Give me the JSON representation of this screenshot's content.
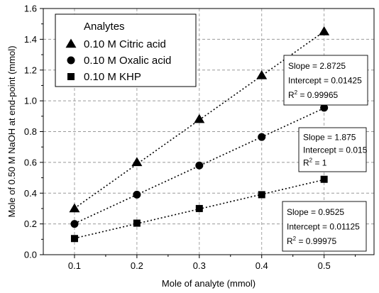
{
  "chart_data": {
    "type": "scatter",
    "title": "",
    "xlabel": "Mole of analyte (mmol)",
    "ylabel": "Mole of 0.50 M NaOH at end-point (mmol)",
    "xlim": [
      0.05,
      0.58
    ],
    "ylim": [
      0.0,
      1.6
    ],
    "x_ticks": [
      0.1,
      0.2,
      0.3,
      0.4,
      0.5
    ],
    "x_tick_labels": [
      "0.1",
      "0.2",
      "0.3",
      "0.4",
      "0.5"
    ],
    "y_ticks": [
      0.0,
      0.2,
      0.4,
      0.6,
      0.8,
      1.0,
      1.2,
      1.4,
      1.6
    ],
    "y_tick_labels": [
      "0.0",
      "0.2",
      "0.4",
      "0.6",
      "0.8",
      "1.0",
      "1.2",
      "1.4",
      "1.6"
    ],
    "grid": true,
    "legend": {
      "title": "Analytes",
      "placement": "top-left"
    },
    "series": [
      {
        "name": "0.10 M Citric acid",
        "marker": "triangle",
        "x": [
          0.1,
          0.2,
          0.3,
          0.4,
          0.5
        ],
        "y": [
          0.3,
          0.6,
          0.88,
          1.165,
          1.45
        ],
        "fit": {
          "slope": 2.8725,
          "intercept": 0.01425
        },
        "annotation": [
          "Slope = 2.8725",
          "Intercept = 0.01425",
          "= 0.99965"
        ]
      },
      {
        "name": "0.10 M Oxalic acid",
        "marker": "circle",
        "x": [
          0.1,
          0.2,
          0.3,
          0.4,
          0.5
        ],
        "y": [
          0.2,
          0.39,
          0.58,
          0.765,
          0.955
        ],
        "fit": {
          "slope": 1.875,
          "intercept": 0.015
        },
        "annotation": [
          "Slope = 1.875",
          "Intercept = 0.015",
          "= 1"
        ]
      },
      {
        "name": "0.10 M KHP",
        "marker": "square",
        "x": [
          0.1,
          0.2,
          0.3,
          0.4,
          0.5
        ],
        "y": [
          0.105,
          0.205,
          0.3,
          0.39,
          0.49
        ],
        "fit": {
          "slope": 0.9525,
          "intercept": 0.01125
        },
        "annotation": [
          "Slope = 0.9525",
          "Intercept = 0.01125",
          "= 0.99975"
        ]
      }
    ]
  }
}
